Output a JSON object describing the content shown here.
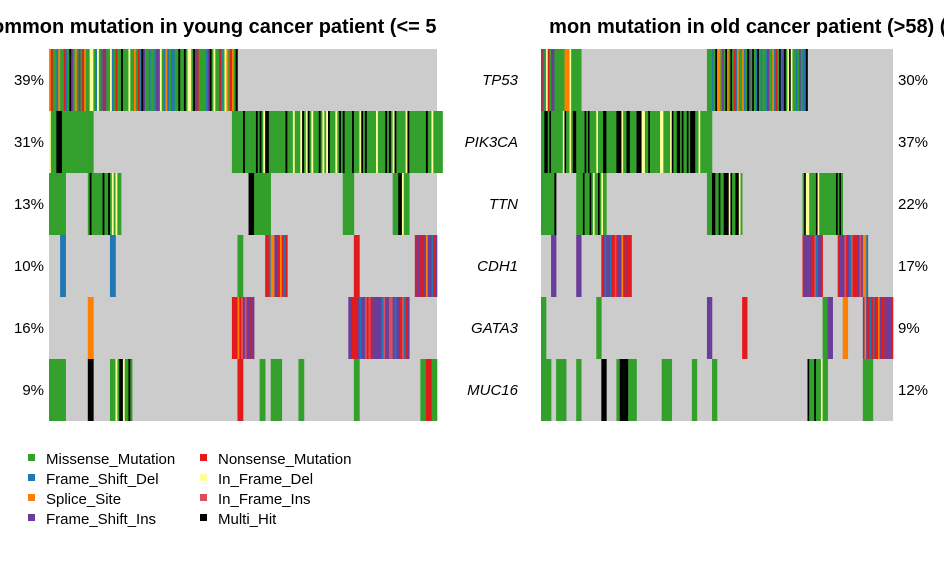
{
  "chart_data": {
    "type": "heatmap",
    "panels": [
      {
        "title": "ommon mutation in young cancer patient (<= 5",
        "title_anchor": "start",
        "samples": 70,
        "label_side": "left",
        "rows": [
          {
            "gene": "TP53",
            "pct": "39%"
          },
          {
            "gene": "PIK3CA",
            "pct": "31%"
          },
          {
            "gene": "TTN",
            "pct": "13%"
          },
          {
            "gene": "CDH1",
            "pct": "10%"
          },
          {
            "gene": "GATA3",
            "pct": "16%"
          },
          {
            "gene": "MUC16",
            "pct": "9%"
          }
        ],
        "cells": [
          [
            [
              0,
              33,
              "mix1"
            ]
          ],
          [
            [
              0,
              7,
              "mixB"
            ],
            [
              33,
              70,
              "mixB"
            ]
          ],
          [
            [
              0,
              2,
              "M"
            ],
            [
              7,
              12,
              "mixB"
            ],
            [
              36,
              38,
              "K"
            ],
            [
              37,
              39,
              "M"
            ],
            [
              53,
              54,
              "M"
            ],
            [
              62,
              64,
              "mixB"
            ]
          ],
          [
            [
              2,
              2,
              "D"
            ],
            [
              11,
              11,
              "D"
            ],
            [
              34,
              34,
              "M"
            ],
            [
              39,
              42,
              "mixC"
            ],
            [
              55,
              55,
              "N"
            ],
            [
              66,
              69,
              "mixC"
            ]
          ],
          [
            [
              7,
              7,
              "S"
            ],
            [
              33,
              36,
              "mixC"
            ],
            [
              54,
              64,
              "mixC"
            ]
          ],
          [
            [
              0,
              1,
              "M"
            ],
            [
              2,
              2,
              "M"
            ],
            [
              7,
              7,
              "K"
            ],
            [
              11,
              14,
              "mixB"
            ],
            [
              34,
              34,
              "N"
            ],
            [
              38,
              38,
              "M"
            ],
            [
              40,
              41,
              "M"
            ],
            [
              45,
              45,
              "M"
            ],
            [
              55,
              55,
              "M"
            ],
            [
              67,
              69,
              "M"
            ],
            [
              68,
              68,
              "N"
            ]
          ]
        ]
      },
      {
        "title": "mon mutation in old cancer patient (>58) (l",
        "title_anchor": "end",
        "samples": 70,
        "label_side": "right",
        "rows": [
          {
            "gene": "TP53",
            "pct": "30%"
          },
          {
            "gene": "PIK3CA",
            "pct": "37%"
          },
          {
            "gene": "TTN",
            "pct": "22%"
          },
          {
            "gene": "CDH1",
            "pct": "17%"
          },
          {
            "gene": "GATA3",
            "pct": "9%"
          },
          {
            "gene": "MUC16",
            "pct": "12%"
          }
        ],
        "cells": [
          [
            [
              0,
              7,
              "mix1"
            ],
            [
              33,
              52,
              "mix1"
            ]
          ],
          [
            [
              0,
              33,
              "mixB"
            ]
          ],
          [
            [
              0,
              2,
              "mixB"
            ],
            [
              7,
              12,
              "mixB"
            ],
            [
              33,
              39,
              "mixB"
            ],
            [
              52,
              59,
              "mixB"
            ]
          ],
          [
            [
              2,
              2,
              "C"
            ],
            [
              7,
              7,
              "C"
            ],
            [
              12,
              17,
              "mixC"
            ],
            [
              52,
              55,
              "mixC"
            ],
            [
              59,
              64,
              "mixC"
            ]
          ],
          [
            [
              0,
              0,
              "M"
            ],
            [
              11,
              11,
              "M"
            ],
            [
              33,
              33,
              "C"
            ],
            [
              40,
              40,
              "N"
            ],
            [
              56,
              56,
              "M"
            ],
            [
              57,
              57,
              "C"
            ],
            [
              60,
              60,
              "S"
            ],
            [
              64,
              69,
              "mixC"
            ]
          ],
          [
            [
              0,
              1,
              "M"
            ],
            [
              3,
              4,
              "M"
            ],
            [
              7,
              7,
              "M"
            ],
            [
              12,
              12,
              "K"
            ],
            [
              15,
              18,
              "mixB"
            ],
            [
              24,
              25,
              "M"
            ],
            [
              30,
              30,
              "M"
            ],
            [
              34,
              34,
              "M"
            ],
            [
              53,
              56,
              "mixB"
            ],
            [
              64,
              65,
              "M"
            ]
          ]
        ]
      }
    ],
    "colors": {
      "background": "#CCCCCC",
      "M": "#33A02C",
      "N": "#E31A1C",
      "D": "#1F78B4",
      "F": "#FFFF99",
      "S": "#FF7F00",
      "I": "#DB4E5A",
      "C": "#6A3D9A",
      "K": "#000000"
    },
    "legend": [
      {
        "key": "M",
        "label": "Missense_Mutation"
      },
      {
        "key": "N",
        "label": "Nonsense_Mutation"
      },
      {
        "key": "D",
        "label": "Frame_Shift_Del"
      },
      {
        "key": "F",
        "label": "In_Frame_Del"
      },
      {
        "key": "S",
        "label": "Splice_Site"
      },
      {
        "key": "I",
        "label": "In_Frame_Ins"
      },
      {
        "key": "C",
        "label": "Frame_Shift_Ins"
      },
      {
        "key": "K",
        "label": "Multi_Hit"
      }
    ],
    "legend_placement": "bottom-left"
  }
}
